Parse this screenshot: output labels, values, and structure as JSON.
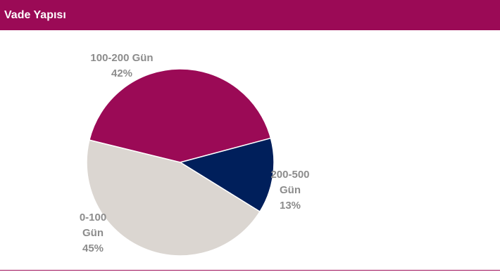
{
  "header": {
    "title": "Vade Yapısı"
  },
  "colors": {
    "header_bg": "#9b0a56",
    "slice_100_200": "#9b0a56",
    "slice_200_500": "#001f5b",
    "slice_0_100": "#dbd6d1",
    "label_text": "#8c8c8c"
  },
  "chart_data": {
    "type": "pie",
    "title": "",
    "slices": [
      {
        "name": "100-200 Gün",
        "value": 42,
        "label_lines": [
          "100-200 Gün",
          "42%"
        ],
        "color": "#9b0a56"
      },
      {
        "name": "200-500 Gün",
        "value": 13,
        "label_lines": [
          "200-500",
          "Gün",
          "13%"
        ],
        "color": "#001f5b"
      },
      {
        "name": "0-100 Gün",
        "value": 45,
        "label_lines": [
          "0-100",
          "Gün",
          "45%"
        ],
        "color": "#dbd6d1"
      }
    ]
  }
}
